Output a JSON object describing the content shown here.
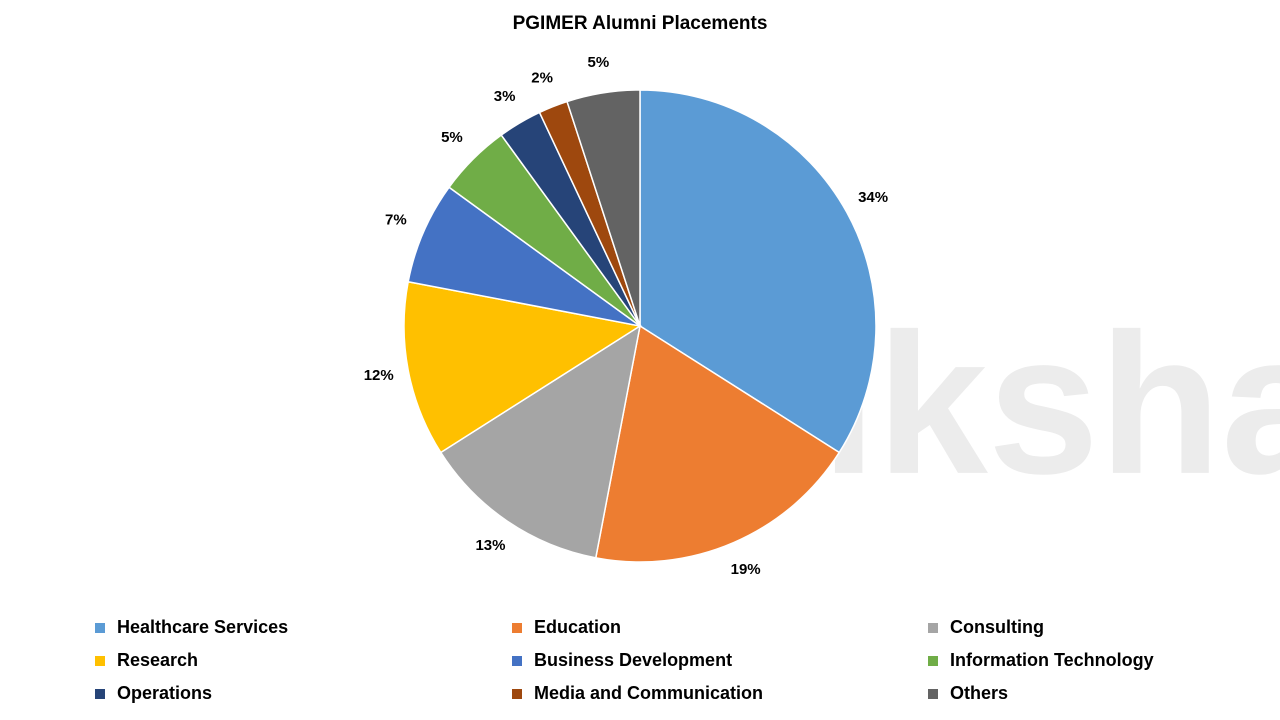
{
  "chart_data": {
    "type": "pie",
    "title": "PGIMER Alumni Placements",
    "watermark": "shiksha",
    "categories": [
      "Healthcare Services",
      "Education",
      "Consulting",
      "Research",
      "Business Development",
      "Information Technology",
      "Operations",
      "Media and Communication",
      "Others"
    ],
    "values": [
      34,
      19,
      13,
      12,
      7,
      5,
      3,
      2,
      5
    ],
    "value_labels": [
      "34%",
      "19%",
      "13%",
      "12%",
      "7%",
      "5%",
      "3%",
      "2%",
      "5%"
    ],
    "colors": [
      "#5b9bd5",
      "#ed7d31",
      "#a5a5a5",
      "#ffc000",
      "#4472c4",
      "#70ad47",
      "#264478",
      "#9e480e",
      "#636363"
    ],
    "legend": "bottom"
  }
}
